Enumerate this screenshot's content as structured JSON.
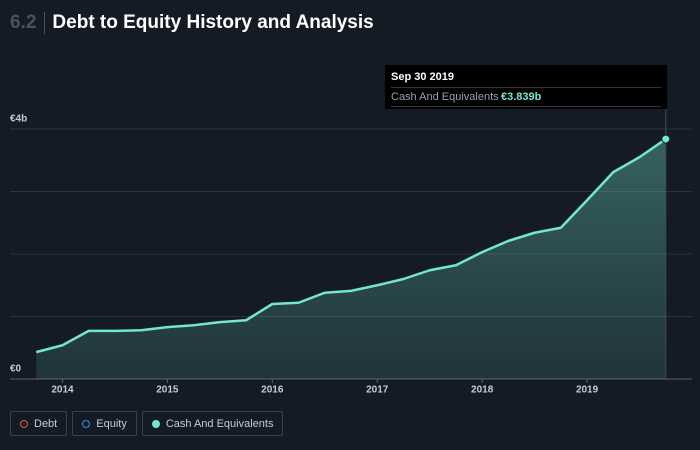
{
  "section_number": "6.2",
  "chart_data": {
    "type": "area",
    "title": "Debt to Equity History and Analysis",
    "x": [
      2013.75,
      2014,
      2014.25,
      2014.5,
      2014.75,
      2015,
      2015.25,
      2015.5,
      2015.75,
      2016,
      2016.25,
      2016.5,
      2016.75,
      2017,
      2017.25,
      2017.5,
      2017.75,
      2018,
      2018.25,
      2018.5,
      2018.75,
      2019,
      2019.25,
      2019.5,
      2019.75
    ],
    "series": [
      {
        "name": "Cash And Equivalents",
        "color": "#73e6d0",
        "values": [
          0.43,
          0.54,
          0.77,
          0.77,
          0.78,
          0.83,
          0.86,
          0.91,
          0.94,
          1.2,
          1.22,
          1.38,
          1.41,
          1.5,
          1.6,
          1.74,
          1.82,
          2.03,
          2.21,
          2.34,
          2.42,
          2.86,
          3.31,
          3.55,
          3.839
        ]
      }
    ],
    "legend_items": [
      {
        "name": "Debt",
        "color": "#e8524a",
        "filled": false
      },
      {
        "name": "Equity",
        "color": "#3a8fd9",
        "filled": false
      }
    ],
    "xlim": [
      2013.5,
      2020
    ],
    "xticks": [
      2014,
      2015,
      2016,
      2017,
      2018,
      2019
    ],
    "ylim": [
      0,
      4
    ],
    "yticks": [
      {
        "value": 0,
        "label": "€0"
      },
      {
        "value": 4,
        "label": "€4b"
      }
    ],
    "ygrid": [
      0,
      1,
      2,
      3,
      4
    ],
    "tooltip": {
      "date": "Sep 30 2019",
      "series": "Cash And Equivalents",
      "value_label": "€3.839b"
    }
  }
}
